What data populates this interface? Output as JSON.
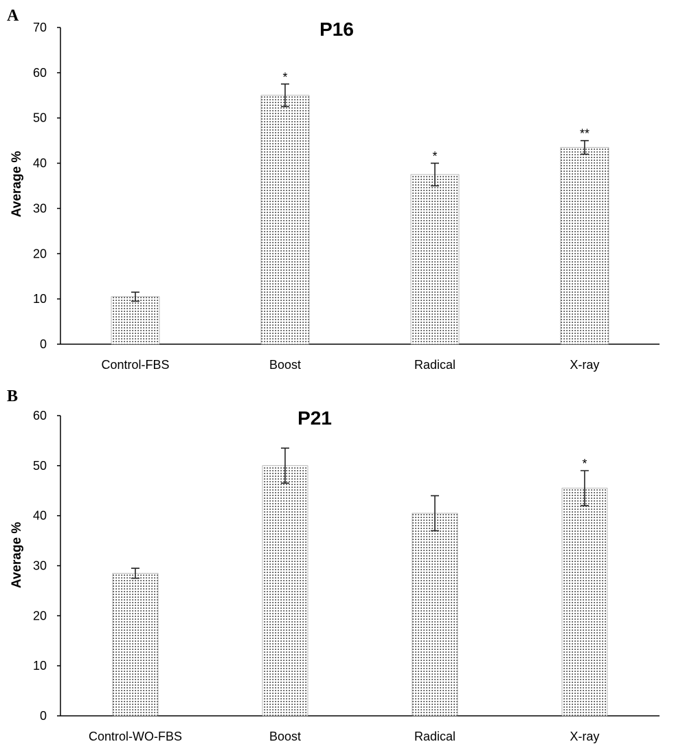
{
  "chart_data": [
    {
      "type": "bar",
      "panel_label": "A",
      "title": "P16",
      "ylabel": "Average %",
      "xlabel": "",
      "ylim": [
        0,
        70
      ],
      "yticks": [
        0,
        10,
        20,
        30,
        40,
        50,
        60,
        70
      ],
      "categories": [
        "Control-FBS",
        "Boost",
        "Radical",
        "X-ray"
      ],
      "values": [
        10.5,
        55,
        37.5,
        43.5
      ],
      "errors": [
        1.0,
        2.5,
        2.5,
        1.5
      ],
      "significance": [
        "",
        "*",
        "*",
        "**"
      ],
      "grid": false,
      "fill": "dotted",
      "colors": {
        "dots": "#333333",
        "axis": "#000000"
      }
    },
    {
      "type": "bar",
      "panel_label": "B",
      "title": "P21",
      "ylabel": "Average %",
      "xlabel": "",
      "ylim": [
        0,
        60
      ],
      "yticks": [
        0,
        10,
        20,
        30,
        40,
        50,
        60
      ],
      "categories": [
        "Control-WO-FBS",
        "Boost",
        "Radical",
        "X-ray"
      ],
      "values": [
        28.5,
        50,
        40.5,
        45.5
      ],
      "errors": [
        1.0,
        3.5,
        3.5,
        3.5
      ],
      "significance": [
        "",
        "",
        "",
        "*"
      ],
      "grid": false,
      "fill": "dotted",
      "colors": {
        "dots": "#333333",
        "axis": "#000000"
      }
    }
  ]
}
